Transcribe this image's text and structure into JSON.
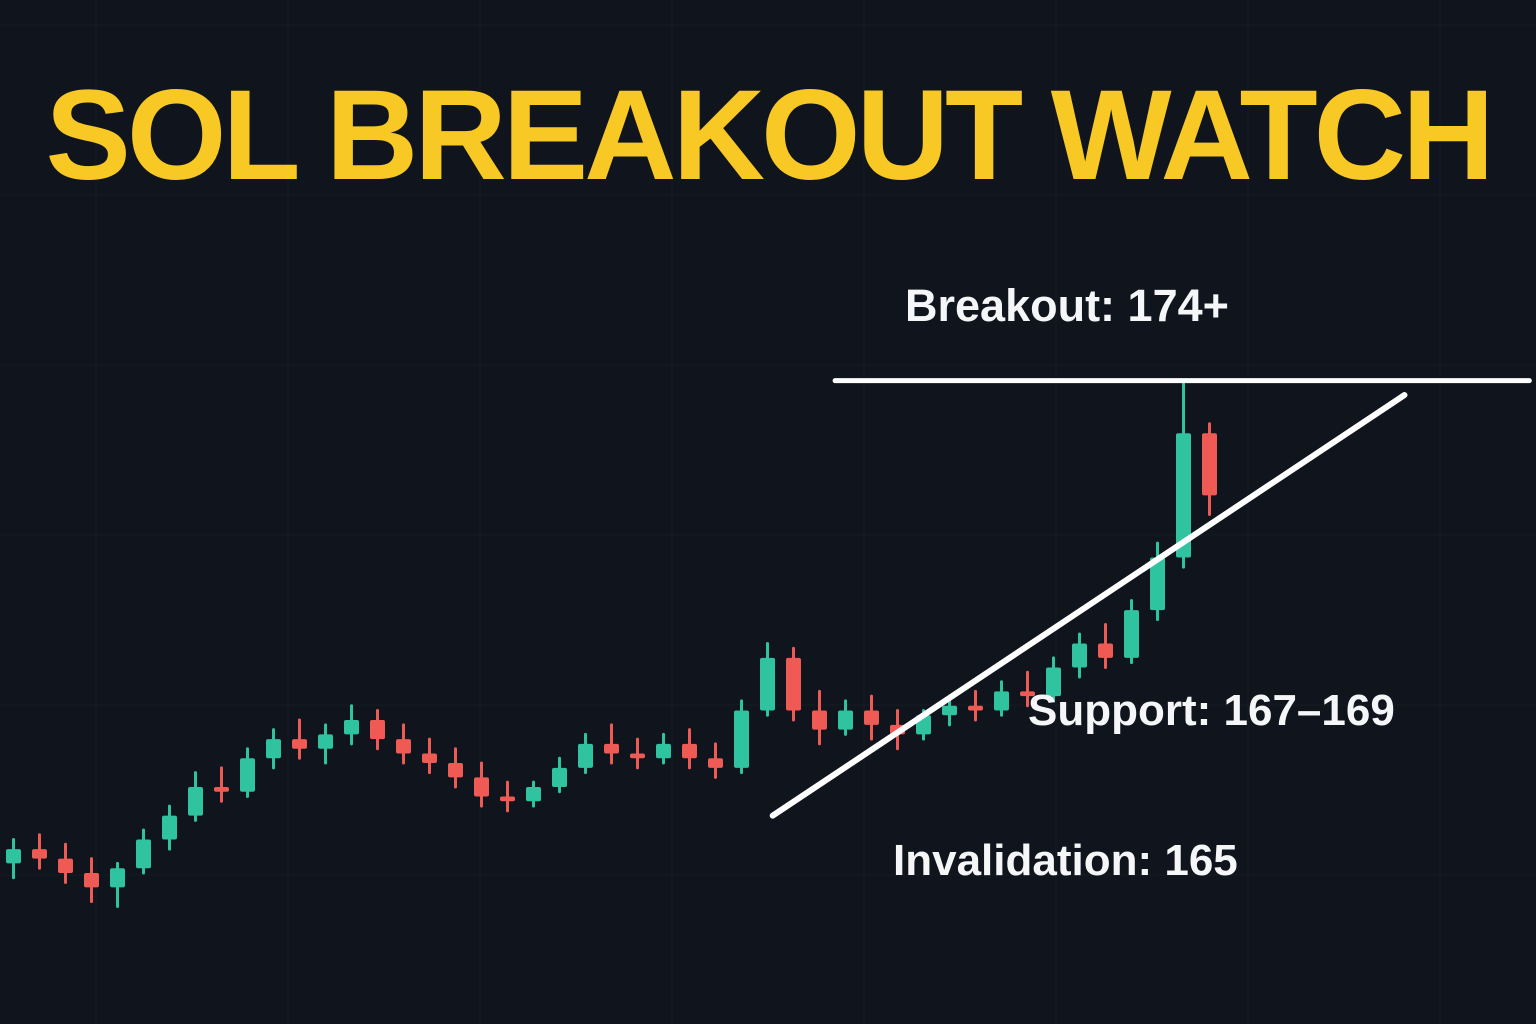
{
  "title": "SOL BREAKOUT WATCH",
  "annotations": {
    "breakout_label": "Breakout: 174+",
    "support_label": "Support: 167–169",
    "invalidation_label": "Invalidation: 165"
  },
  "colors": {
    "background": "#0f141d",
    "title": "#f8c824",
    "text": "#f4f6f8",
    "bullish": "#2fc3a0",
    "bearish": "#ef5a54",
    "line": "#ffffff",
    "grid": "rgba(255,255,255,0.035)"
  },
  "chart_data": {
    "type": "candlestick",
    "title": "SOL BREAKOUT WATCH",
    "ylabel": "",
    "xlabel": "",
    "axes_visible": false,
    "grid": true,
    "legend": "none",
    "ylim": [
      162.8,
      174.6
    ],
    "candles_ohlc": [
      [
        163.9,
        164.4,
        163.6,
        164.2
      ],
      [
        164.2,
        164.5,
        163.8,
        164.0
      ],
      [
        164.0,
        164.3,
        163.5,
        163.7
      ],
      [
        163.7,
        164.0,
        163.1,
        163.4
      ],
      [
        163.4,
        163.9,
        163.0,
        163.8
      ],
      [
        163.8,
        164.6,
        163.7,
        164.4
      ],
      [
        164.4,
        165.1,
        164.2,
        164.9
      ],
      [
        164.9,
        165.8,
        164.8,
        165.5
      ],
      [
        165.5,
        165.9,
        165.2,
        165.4
      ],
      [
        165.4,
        166.3,
        165.3,
        166.1
      ],
      [
        166.1,
        166.7,
        165.9,
        166.5
      ],
      [
        166.5,
        166.9,
        166.1,
        166.3
      ],
      [
        166.3,
        166.8,
        166.0,
        166.6
      ],
      [
        166.6,
        167.2,
        166.4,
        166.9
      ],
      [
        166.9,
        167.1,
        166.3,
        166.5
      ],
      [
        166.5,
        166.8,
        166.0,
        166.2
      ],
      [
        166.2,
        166.5,
        165.8,
        166.0
      ],
      [
        166.0,
        166.3,
        165.5,
        165.7
      ],
      [
        165.7,
        166.0,
        165.1,
        165.3
      ],
      [
        165.3,
        165.6,
        165.0,
        165.2
      ],
      [
        165.2,
        165.6,
        165.1,
        165.5
      ],
      [
        165.5,
        166.1,
        165.4,
        165.9
      ],
      [
        165.9,
        166.6,
        165.8,
        166.4
      ],
      [
        166.4,
        166.8,
        166.0,
        166.2
      ],
      [
        166.2,
        166.5,
        165.9,
        166.1
      ],
      [
        166.1,
        166.6,
        166.0,
        166.4
      ],
      [
        166.4,
        166.7,
        165.9,
        166.1
      ],
      [
        166.1,
        166.4,
        165.7,
        165.9
      ],
      [
        165.9,
        167.3,
        165.8,
        167.1
      ],
      [
        167.1,
        168.5,
        167.0,
        168.2
      ],
      [
        168.2,
        168.4,
        166.9,
        167.1
      ],
      [
        167.1,
        167.5,
        166.4,
        166.7
      ],
      [
        166.7,
        167.3,
        166.6,
        167.1
      ],
      [
        167.1,
        167.4,
        166.5,
        166.8
      ],
      [
        166.8,
        167.1,
        166.3,
        166.6
      ],
      [
        166.6,
        167.1,
        166.5,
        167.0
      ],
      [
        167.0,
        167.4,
        166.8,
        167.2
      ],
      [
        167.2,
        167.5,
        166.9,
        167.1
      ],
      [
        167.1,
        167.7,
        167.0,
        167.5
      ],
      [
        167.5,
        167.9,
        167.2,
        167.4
      ],
      [
        167.4,
        168.2,
        167.3,
        168.0
      ],
      [
        168.0,
        168.7,
        167.8,
        168.5
      ],
      [
        168.5,
        168.9,
        168.0,
        168.2
      ],
      [
        168.2,
        169.4,
        168.1,
        169.2
      ],
      [
        169.2,
        170.6,
        169.0,
        170.3
      ],
      [
        170.3,
        174.0,
        170.1,
        172.9
      ],
      [
        172.9,
        173.1,
        171.2,
        171.6
      ]
    ],
    "levels": {
      "breakout": 174,
      "support_zone": [
        167,
        169
      ],
      "invalidation": 165
    },
    "breakout_line": {
      "price": 174,
      "from_candle": 31.6,
      "to_candle": 58.3
    },
    "trendline": {
      "type": "ascending-support",
      "from": {
        "index": 29.2,
        "price": 164.9
      },
      "to": {
        "index": 53.5,
        "price": 173.7
      }
    }
  }
}
